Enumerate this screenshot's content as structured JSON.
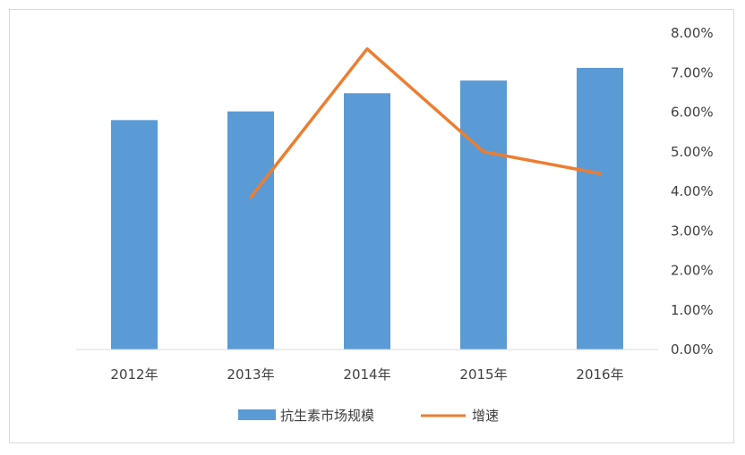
{
  "chart_data": {
    "type": "bar",
    "categories": [
      "2012年",
      "2013年",
      "2014年",
      "2015年",
      "2016年"
    ],
    "series": [
      {
        "name": "抗生素市场规模",
        "type": "bar",
        "color": "#5b9bd5",
        "values": [
          5.8,
          6.02,
          6.48,
          6.8,
          7.12
        ]
      },
      {
        "name": "增速",
        "type": "line",
        "color": "#ed7d31",
        "values": [
          null,
          3.85,
          7.6,
          5.0,
          4.45
        ]
      }
    ],
    "y_right_ticks": [
      "0.00%",
      "1.00%",
      "2.00%",
      "3.00%",
      "4.00%",
      "5.00%",
      "6.00%",
      "7.00%",
      "8.00%"
    ],
    "ylim": [
      0,
      8
    ],
    "grid": false,
    "legend": "bottom"
  }
}
